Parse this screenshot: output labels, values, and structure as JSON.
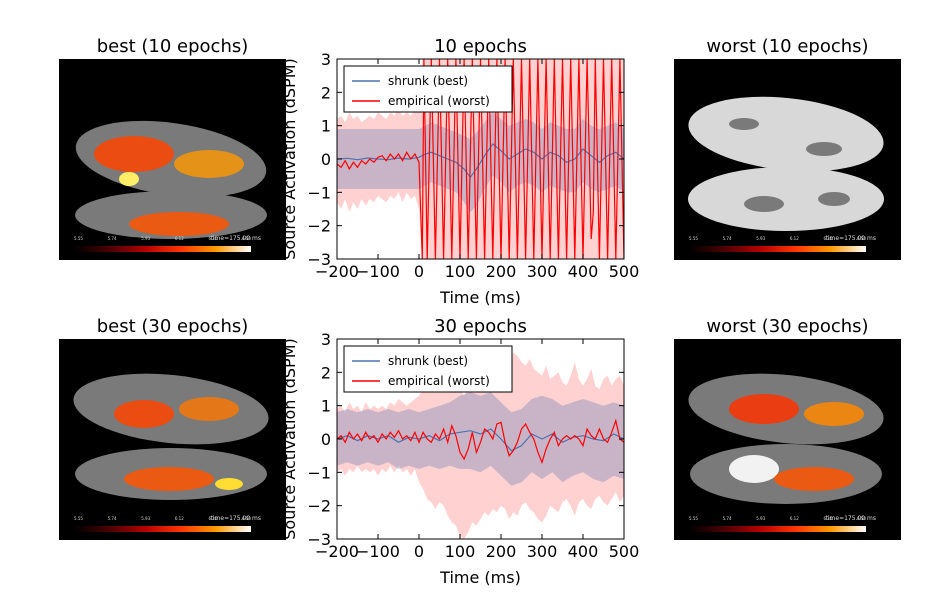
{
  "panels": {
    "best10_title": "best (10 epochs)",
    "worst10_title": "worst (10 epochs)",
    "best30_title": "best (30 epochs)",
    "worst30_title": "worst (30 epochs)",
    "brain_time_label": "time=175.00 ms",
    "colorbar_ticks": [
      "5.55",
      "5.74",
      "5.93",
      "6.12",
      "6.31",
      "6.50"
    ]
  },
  "colors": {
    "shrunk": "#4c72b0",
    "empirical": "#ff0000",
    "shrunk_band": "rgba(76,114,176,0.30)",
    "empirical_band": "rgba(255,0,0,0.18)"
  },
  "chart_data": [
    {
      "type": "line",
      "title": "10 epochs",
      "xlabel": "Time (ms)",
      "ylabel": "Source Activation (dSPM)",
      "xlim": [
        -200,
        500
      ],
      "ylim": [
        -3,
        3
      ],
      "xticks": [
        -200,
        -100,
        0,
        100,
        200,
        300,
        400,
        500
      ],
      "yticks": [
        -3,
        -2,
        -1,
        0,
        1,
        2,
        3
      ],
      "legend_position": "upper-left",
      "series": [
        {
          "name": "shrunk (best)",
          "x": [
            -200,
            -175,
            -150,
            -125,
            -100,
            -75,
            -50,
            -25,
            0,
            15,
            30,
            50,
            70,
            90,
            110,
            125,
            140,
            160,
            180,
            200,
            220,
            240,
            260,
            280,
            300,
            320,
            340,
            360,
            380,
            400,
            420,
            440,
            460,
            480,
            500
          ],
          "y": [
            0.0,
            0.02,
            -0.02,
            0.03,
            0.0,
            -0.02,
            0.03,
            0.0,
            0.05,
            0.15,
            0.2,
            0.1,
            0.0,
            -0.1,
            -0.3,
            -0.55,
            -0.3,
            0.1,
            0.45,
            0.25,
            0.0,
            0.15,
            0.3,
            0.2,
            0.0,
            0.2,
            0.1,
            -0.1,
            0.0,
            0.3,
            0.1,
            -0.1,
            0.1,
            0.2,
            0.0
          ],
          "band_upper": [
            0.9,
            0.9,
            0.9,
            0.9,
            0.9,
            0.9,
            0.9,
            0.9,
            0.9,
            1.0,
            1.1,
            1.0,
            0.9,
            0.8,
            0.7,
            0.6,
            0.8,
            1.1,
            1.4,
            1.2,
            1.0,
            1.1,
            1.2,
            1.1,
            0.9,
            1.1,
            1.0,
            0.9,
            0.9,
            1.2,
            1.0,
            0.9,
            1.0,
            1.1,
            0.9
          ],
          "band_lower": [
            -0.9,
            -0.9,
            -0.9,
            -0.9,
            -0.9,
            -0.9,
            -0.9,
            -0.9,
            -0.9,
            -0.8,
            -0.7,
            -0.8,
            -0.9,
            -1.0,
            -1.3,
            -1.6,
            -1.4,
            -0.9,
            -0.5,
            -0.7,
            -1.0,
            -0.8,
            -0.7,
            -0.8,
            -1.0,
            -0.8,
            -0.9,
            -1.0,
            -1.0,
            -0.7,
            -0.9,
            -1.0,
            -0.9,
            -0.8,
            -1.0
          ]
        },
        {
          "name": "empirical (worst)",
          "x": [
            -200,
            -190,
            -180,
            -170,
            -160,
            -150,
            -140,
            -130,
            -120,
            -110,
            -100,
            -90,
            -80,
            -70,
            -60,
            -50,
            -40,
            -30,
            -20,
            -10,
            0,
            8,
            12,
            20,
            30,
            40,
            50,
            60,
            70,
            80,
            90,
            100,
            110,
            120,
            130,
            140,
            150,
            160,
            170,
            180,
            190,
            200,
            210,
            220,
            230,
            240,
            250,
            260,
            270,
            280,
            290,
            300,
            310,
            320,
            330,
            340,
            350,
            360,
            370,
            380,
            390,
            400,
            410,
            420,
            425,
            430,
            440,
            450,
            460,
            470,
            480,
            490,
            500
          ],
          "y": [
            -0.15,
            -0.25,
            -0.05,
            -0.3,
            -0.1,
            -0.25,
            -0.05,
            -0.15,
            0.0,
            -0.1,
            0.05,
            0.1,
            -0.05,
            0.15,
            0.0,
            0.15,
            -0.05,
            0.2,
            0.0,
            0.15,
            -0.1,
            -3.0,
            3.0,
            -3.0,
            3.0,
            -3.0,
            3.0,
            -3.0,
            3.0,
            -3.0,
            3.0,
            -3.0,
            3.0,
            -3.0,
            3.0,
            -3.0,
            3.0,
            -3.0,
            3.0,
            -3.0,
            3.0,
            -3.0,
            3.0,
            -3.0,
            3.0,
            -3.0,
            3.0,
            -3.0,
            3.0,
            -3.0,
            3.0,
            -3.0,
            3.0,
            -3.0,
            3.0,
            -3.0,
            3.0,
            -3.0,
            3.0,
            -3.0,
            3.0,
            -3.0,
            3.0,
            -2.4,
            -1.6,
            3.0,
            -3.0,
            3.0,
            -3.0,
            3.0,
            -3.0,
            3.0,
            -3.0
          ],
          "band_upper": [
            1.2,
            1.3,
            1.1,
            1.4,
            1.2,
            1.3,
            1.1,
            1.2,
            1.3,
            1.2,
            1.4,
            1.3,
            1.2,
            1.4,
            1.3,
            1.5,
            1.3,
            1.4,
            1.3,
            1.5,
            1.6,
            3.0,
            3.0,
            3.0,
            3.0,
            3.0,
            3.0,
            3.0,
            3.0,
            3.0,
            3.0,
            3.0,
            3.0,
            3.0,
            3.0,
            3.0,
            3.0,
            3.0,
            3.0,
            3.0,
            3.0,
            3.0,
            3.0,
            3.0,
            3.0,
            3.0,
            3.0,
            3.0,
            3.0,
            3.0,
            3.0,
            3.0,
            3.0,
            3.0,
            3.0,
            3.0,
            3.0,
            3.0,
            3.0,
            3.0,
            3.0,
            3.0,
            3.0,
            3.0,
            3.0,
            3.0,
            3.0,
            3.0,
            3.0,
            3.0,
            3.0,
            3.0,
            3.0
          ],
          "band_lower": [
            -1.3,
            -1.5,
            -1.2,
            -1.6,
            -1.3,
            -1.5,
            -1.2,
            -1.4,
            -1.2,
            -1.3,
            -1.1,
            -1.2,
            -1.3,
            -1.1,
            -1.2,
            -1.0,
            -1.3,
            -1.0,
            -1.2,
            -1.1,
            -1.5,
            -3.0,
            -3.0,
            -3.0,
            -3.0,
            -3.0,
            -3.0,
            -3.0,
            -3.0,
            -3.0,
            -3.0,
            -3.0,
            -3.0,
            -3.0,
            -3.0,
            -3.0,
            -3.0,
            -3.0,
            -3.0,
            -3.0,
            -3.0,
            -3.0,
            -3.0,
            -3.0,
            -3.0,
            -3.0,
            -3.0,
            -3.0,
            -3.0,
            -3.0,
            -3.0,
            -3.0,
            -3.0,
            -3.0,
            -3.0,
            -3.0,
            -3.0,
            -3.0,
            -3.0,
            -3.0,
            -3.0,
            -3.0,
            -3.0,
            -3.0,
            -3.0,
            -3.0,
            -3.0,
            -3.0,
            -3.0,
            -3.0,
            -3.0,
            -3.0,
            -3.0
          ]
        }
      ]
    },
    {
      "type": "line",
      "title": "30 epochs",
      "xlabel": "Time (ms)",
      "ylabel": "Source Activation (dSPM)",
      "xlim": [
        -200,
        500
      ],
      "ylim": [
        -3,
        3
      ],
      "xticks": [
        -200,
        -100,
        0,
        100,
        200,
        300,
        400,
        500
      ],
      "yticks": [
        -3,
        -2,
        -1,
        0,
        1,
        2,
        3
      ],
      "legend_position": "upper-left",
      "series": [
        {
          "name": "shrunk (best)",
          "x": [
            -200,
            -175,
            -150,
            -125,
            -100,
            -75,
            -50,
            -25,
            0,
            25,
            50,
            75,
            100,
            125,
            150,
            175,
            200,
            225,
            250,
            275,
            300,
            325,
            350,
            375,
            400,
            425,
            450,
            475,
            500
          ],
          "y": [
            0.0,
            0.1,
            -0.05,
            0.1,
            0.0,
            0.1,
            -0.1,
            0.05,
            0.0,
            0.1,
            -0.05,
            0.15,
            0.2,
            0.25,
            0.15,
            0.3,
            0.0,
            -0.35,
            -0.2,
            0.15,
            0.0,
            0.15,
            -0.1,
            0.05,
            0.1,
            0.0,
            -0.05,
            0.15,
            0.0
          ],
          "band_upper": [
            0.8,
            0.9,
            0.8,
            0.9,
            0.8,
            0.9,
            0.8,
            0.9,
            0.8,
            0.9,
            1.0,
            1.1,
            1.3,
            1.4,
            1.3,
            1.4,
            1.1,
            0.8,
            0.9,
            1.2,
            1.3,
            1.2,
            1.0,
            1.1,
            1.2,
            1.1,
            1.0,
            1.1,
            1.0
          ],
          "band_lower": [
            -0.8,
            -0.7,
            -0.8,
            -0.7,
            -0.8,
            -0.7,
            -0.9,
            -0.8,
            -0.9,
            -0.8,
            -0.9,
            -0.8,
            -0.9,
            -0.9,
            -1.0,
            -0.8,
            -1.1,
            -1.4,
            -1.3,
            -1.0,
            -1.2,
            -1.0,
            -1.3,
            -1.1,
            -1.0,
            -1.2,
            -1.3,
            -1.1,
            -1.2
          ]
        },
        {
          "name": "empirical (worst)",
          "x": [
            -200,
            -190,
            -180,
            -170,
            -160,
            -150,
            -140,
            -130,
            -120,
            -110,
            -100,
            -90,
            -80,
            -70,
            -60,
            -50,
            -40,
            -30,
            -20,
            -10,
            0,
            10,
            20,
            30,
            40,
            50,
            60,
            70,
            80,
            90,
            100,
            110,
            120,
            130,
            140,
            150,
            160,
            170,
            180,
            190,
            200,
            210,
            220,
            230,
            240,
            250,
            260,
            270,
            280,
            290,
            300,
            310,
            320,
            330,
            340,
            350,
            360,
            370,
            380,
            390,
            400,
            410,
            420,
            430,
            440,
            450,
            460,
            470,
            480,
            490,
            500
          ],
          "y": [
            0.0,
            0.1,
            -0.1,
            0.2,
            0.0,
            0.15,
            -0.05,
            0.2,
            0.0,
            0.1,
            -0.1,
            0.15,
            0.0,
            0.2,
            0.05,
            0.25,
            0.0,
            0.1,
            -0.05,
            0.2,
            -0.1,
            0.2,
            0.0,
            -0.1,
            0.15,
            0.0,
            0.3,
            -0.1,
            0.4,
            0.1,
            -0.4,
            -0.6,
            -0.3,
            0.2,
            -0.4,
            -0.1,
            0.3,
            0.2,
            0.0,
            0.45,
            0.5,
            -0.1,
            -0.5,
            -0.35,
            -0.1,
            0.3,
            0.45,
            0.2,
            0.0,
            -0.4,
            -0.7,
            -0.3,
            0.0,
            0.2,
            -0.2,
            0.0,
            0.1,
            0.0,
            0.1,
            0.0,
            -0.2,
            0.3,
            0.1,
            0.0,
            0.3,
            0.0,
            -0.1,
            0.2,
            0.55,
            0.0,
            -0.1
          ],
          "band_upper": [
            0.9,
            1.0,
            0.8,
            1.1,
            0.9,
            1.0,
            0.8,
            1.1,
            0.9,
            1.0,
            0.9,
            1.0,
            0.9,
            1.1,
            1.0,
            1.2,
            1.1,
            1.0,
            1.1,
            1.2,
            1.3,
            1.5,
            1.8,
            1.9,
            2.0,
            1.8,
            1.6,
            1.9,
            2.1,
            1.7,
            1.5,
            1.3,
            1.6,
            1.8,
            2.0,
            1.9,
            1.7,
            1.9,
            2.2,
            2.3,
            2.0,
            1.7,
            2.0,
            2.6,
            2.5,
            2.3,
            2.2,
            2.4,
            2.1,
            2.0,
            1.9,
            2.2,
            1.8,
            1.9,
            2.0,
            1.7,
            1.6,
            1.9,
            2.3,
            1.8,
            1.6,
            1.8,
            2.1,
            1.6,
            1.5,
            1.8,
            1.9,
            1.6,
            1.8,
            1.9,
            1.6
          ],
          "band_lower": [
            -1.0,
            -0.9,
            -1.1,
            -0.9,
            -1.0,
            -0.8,
            -1.0,
            -0.9,
            -1.0,
            -0.9,
            -1.1,
            -0.9,
            -1.0,
            -0.8,
            -1.0,
            -0.8,
            -1.0,
            -0.9,
            -1.1,
            -0.9,
            -1.3,
            -1.5,
            -1.8,
            -1.9,
            -2.1,
            -1.9,
            -2.0,
            -2.3,
            -2.5,
            -2.6,
            -2.9,
            -3.0,
            -2.8,
            -2.5,
            -2.6,
            -2.4,
            -2.2,
            -2.3,
            -2.1,
            -2.2,
            -2.0,
            -2.1,
            -2.4,
            -2.2,
            -2.3,
            -2.0,
            -1.9,
            -2.1,
            -2.2,
            -2.4,
            -2.5,
            -2.3,
            -2.0,
            -2.1,
            -2.2,
            -1.9,
            -1.8,
            -2.0,
            -2.3,
            -1.9,
            -1.8,
            -2.0,
            -2.1,
            -1.8,
            -1.7,
            -1.9,
            -2.0,
            -1.8,
            -1.6,
            -1.9,
            -1.7
          ]
        }
      ]
    }
  ]
}
